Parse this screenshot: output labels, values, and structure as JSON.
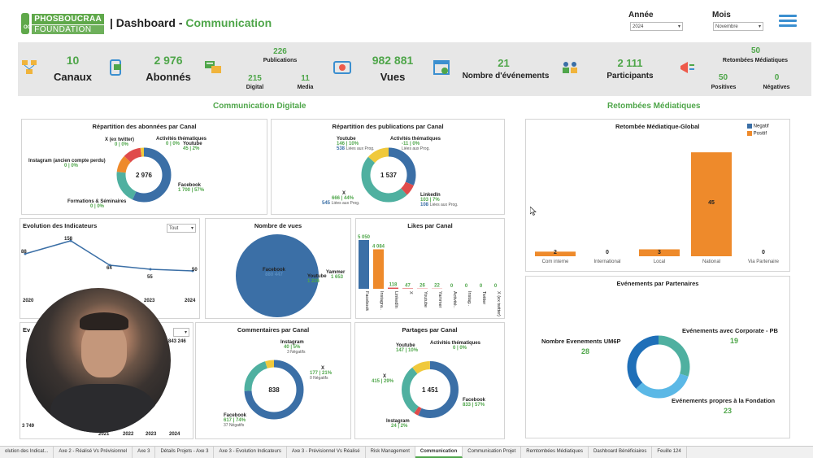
{
  "header": {
    "logo_line1": "PHOSBOUCRAA",
    "logo_line2": "FOUNDATION",
    "logo_badge": "OCP",
    "title_prefix": "| Dashboard - ",
    "title_accent": "Communication",
    "year_label": "Année",
    "year_value": "2024",
    "month_label": "Mois",
    "month_value": "Novembre"
  },
  "kpis": {
    "canaux": {
      "value": "10",
      "label": "Canaux"
    },
    "abonnes": {
      "value": "2 976",
      "label": "Abonnés"
    },
    "publications": {
      "total": "226",
      "label": "Publications",
      "digital_value": "215",
      "digital_label": "Digital",
      "media_value": "11",
      "media_label": "Media"
    },
    "vues": {
      "value": "982 881",
      "label": "Vues"
    },
    "evenements": {
      "value": "21",
      "label": "Nombre d'événements"
    },
    "participants": {
      "value": "2 111",
      "label": "Participants"
    },
    "retombees": {
      "total": "50",
      "label": "Retombées Médiatiques",
      "pos_value": "50",
      "pos_label": "Positives",
      "neg_value": "0",
      "neg_label": "Négatives"
    }
  },
  "sections": {
    "digital": "Communication Digitale",
    "media": "Retombées Médiatiques"
  },
  "abonnes_canal": {
    "title": "Répartition des abonnées par Canal",
    "center": "2 976",
    "labels": {
      "x_name": "X (ex twitter)",
      "x_val": "0 | 0%",
      "act_name": "Activités thématiques",
      "act_val": "0 | 0%",
      "yt_name": "Youtube",
      "yt_val": "45 | 2%",
      "insta_name": "Instagram (ancien compte perdu)",
      "insta_val": "0 | 0%",
      "fb_name": "Facebook",
      "fb_val": "1 700 | 57%",
      "form_name": "Formations & Séminaires",
      "form_val": "0 | 0%"
    }
  },
  "pubs_canal": {
    "title": "Répartition des publications par Canal",
    "center": "1 537",
    "labels": {
      "yt_name": "Youtube",
      "yt_val": "146 | 10%",
      "yt_sub": "538",
      "act_name": "Activités thématiques",
      "act_val": "-11 | 0%",
      "act_sub": "Liées aux Prog.",
      "yt_sub2": "Liées aux Prog.",
      "li_name": "LinkedIn",
      "li_val": "103 | 7%",
      "li_sub": "108",
      "li_sub2": "Liées aux Prog.",
      "x_name": "X",
      "x_val": "666 | 44%",
      "x_sub": "545",
      "x_sub2": "Liées aux Prog."
    }
  },
  "evolution": {
    "title": "Evolution des Indicateurs",
    "select": "Tout",
    "points": [
      "88",
      "158",
      "64",
      "55",
      "50"
    ],
    "years": [
      "2020",
      "2023",
      "2024"
    ]
  },
  "vues": {
    "title": "Nombre de vues",
    "fb": "Facebook",
    "fb_val": "880 447",
    "yt": "Youtube",
    "yt_val": "1 226",
    "ya": "Yammer",
    "ya_val": "1 653"
  },
  "likes": {
    "title": "Likes par Canal",
    "vals": [
      "5 050",
      "4 084",
      "118",
      "47",
      "26",
      "22",
      "0",
      "0",
      "0",
      "0"
    ],
    "cats": [
      "Facebook",
      "Instagra..",
      "LinkedIn",
      "X",
      "Youtube",
      "Yammer",
      "Activité..",
      "Instag..",
      "Twitter",
      "X (ex twitter)"
    ]
  },
  "evol2": {
    "title_prefix": "Ev",
    "val": "843 246",
    "val2": "3 749",
    "years": [
      "2021",
      "2022",
      "2023",
      "2024"
    ]
  },
  "commentaires": {
    "title": "Commentaires par Canal",
    "center": "838",
    "insta_name": "Instagram",
    "insta_val": "40 | 5%",
    "insta_neg": "3 Négatifs",
    "x_name": "X",
    "x_val": "177 | 21%",
    "x_neg": "0 Négatifs",
    "fb_name": "Facebook",
    "fb_val": "617 | 74%",
    "fb_neg": "37 Négatifs"
  },
  "partages": {
    "title": "Partages par Canal",
    "center": "1 451",
    "yt_name": "Youtube",
    "yt_val": "147 | 10%",
    "act_name": "Activités thématiques",
    "act_val": "0 | 0%",
    "x_name": "X",
    "x_val": "415 | 29%",
    "fb_name": "Facebook",
    "fb_val": "833 | 57%",
    "ig_name": "Instagram",
    "ig_val": "24 | 2%"
  },
  "retombee_global": {
    "title": "Retombée Médiatique-Global",
    "legend_neg": "Negatif",
    "legend_pos": "Positif",
    "colors": {
      "neg": "#3b6fa6",
      "pos": "#ee8a2b"
    }
  },
  "chart_data": {
    "type": "bar",
    "title": "Retombée Médiatique-Global",
    "categories": [
      "Com interne",
      "International",
      "Local",
      "National",
      "Via Partenaire"
    ],
    "series": [
      {
        "name": "Negatif",
        "values": [
          0,
          0,
          0,
          0,
          0
        ]
      },
      {
        "name": "Positif",
        "values": [
          2,
          0,
          3,
          45,
          0
        ]
      }
    ],
    "value_labels": [
      "2",
      "0",
      "3",
      "45",
      "0"
    ],
    "ylim": [
      0,
      50
    ]
  },
  "partenaires": {
    "title": "Evénements par Partenaires",
    "um6p_label": "Nombre Evenements UM6P",
    "um6p_val": "28",
    "corp_label": "Evénements avec Corporate - PB",
    "corp_val": "19",
    "fond_label": "Evénements propres à la Fondation",
    "fond_val": "23"
  },
  "tabs": [
    "olution des Indicat...",
    "Axe 2 - Réalisé Vs Prévisionnel",
    "Axe 3",
    "Détails Projets - Axe 3",
    "Axe 3 - Evolution Indicateurs",
    "Axe 3 - Prévisionnel Vs Réalisé",
    "Risk Management",
    "Communication",
    "Communication Projet",
    "Remtombées Médiatiques",
    "Dashboard Bénéficiaires",
    "Feuille 124"
  ]
}
